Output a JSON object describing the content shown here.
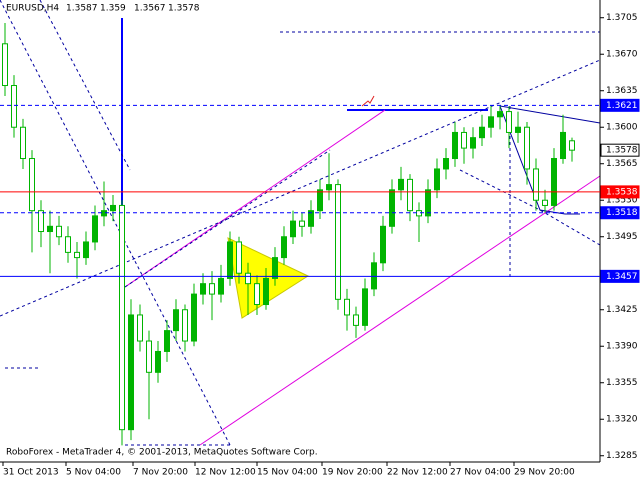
{
  "chart_data": {
    "type": "candlestick",
    "title": "EURUSD,H4",
    "footer": "RoboForex - MetaTrader 4, © 2001-2013, MetaQuotes Software Corp.",
    "x_labels": [
      "31 Oct 2013",
      "5 Nov 04:00",
      "7 Nov 20:00",
      "12 Nov 12:00",
      "15 Nov 04:00",
      "19 Nov 20:00",
      "22 Nov 12:00",
      "27 Nov 04:00",
      "29 Nov 20:00"
    ],
    "up_color": "#00b400",
    "down_color": "#00b400",
    "candles": {
      "open": [
        1.368,
        1.364,
        1.36,
        1.357,
        1.352,
        1.35,
        1.3505,
        1.3495,
        1.348,
        1.3475,
        1.349,
        1.3515,
        1.352,
        1.3525,
        1.331,
        1.342,
        1.3395,
        1.3365,
        1.3385,
        1.3405,
        1.3425,
        1.3395,
        1.344,
        1.345,
        1.344,
        1.3455,
        1.349,
        1.346,
        1.345,
        1.343,
        1.3455,
        1.3475,
        1.3495,
        1.351,
        1.3505,
        1.352,
        1.354,
        1.3545,
        1.3435,
        1.342,
        1.341,
        1.3445,
        1.347,
        1.3505,
        1.354,
        1.355,
        1.352,
        1.3515,
        1.354,
        1.356,
        1.357,
        1.3595,
        1.358,
        1.359,
        1.36,
        1.361,
        1.3615,
        1.3595,
        1.36,
        1.356,
        1.353,
        1.3525,
        1.357,
        1.3587
      ],
      "high": [
        1.37,
        1.365,
        1.3608,
        1.3578,
        1.353,
        1.352,
        1.3515,
        1.3505,
        1.349,
        1.35,
        1.3525,
        1.3548,
        1.3535,
        1.353,
        1.3435,
        1.343,
        1.3405,
        1.3395,
        1.3415,
        1.3435,
        1.343,
        1.345,
        1.346,
        1.3462,
        1.3468,
        1.35,
        1.3495,
        1.347,
        1.3458,
        1.3465,
        1.3485,
        1.3505,
        1.352,
        1.3518,
        1.353,
        1.355,
        1.3575,
        1.355,
        1.3445,
        1.3428,
        1.3455,
        1.348,
        1.3515,
        1.355,
        1.3562,
        1.3555,
        1.3528,
        1.355,
        1.357,
        1.358,
        1.3605,
        1.36,
        1.36,
        1.3612,
        1.3621,
        1.3621,
        1.362,
        1.3615,
        1.3605,
        1.357,
        1.354,
        1.358,
        1.3612,
        1.359
      ],
      "low": [
        1.363,
        1.359,
        1.356,
        1.348,
        1.3485,
        1.346,
        1.3487,
        1.347,
        1.3455,
        1.3468,
        1.3482,
        1.3505,
        1.351,
        1.3295,
        1.33,
        1.3385,
        1.332,
        1.3355,
        1.3375,
        1.3395,
        1.3385,
        1.339,
        1.343,
        1.3415,
        1.3432,
        1.3448,
        1.345,
        1.342,
        1.342,
        1.3425,
        1.3448,
        1.3468,
        1.3488,
        1.3495,
        1.3498,
        1.3512,
        1.353,
        1.3425,
        1.3405,
        1.3398,
        1.3405,
        1.3438,
        1.3462,
        1.3498,
        1.353,
        1.351,
        1.349,
        1.3508,
        1.3532,
        1.355,
        1.3562,
        1.3565,
        1.357,
        1.3582,
        1.359,
        1.3598,
        1.358,
        1.3585,
        1.3545,
        1.352,
        1.3518,
        1.352,
        1.3565,
        1.3567
      ],
      "close": [
        1.364,
        1.36,
        1.357,
        1.352,
        1.35,
        1.3505,
        1.3495,
        1.348,
        1.3475,
        1.349,
        1.3515,
        1.352,
        1.3525,
        1.331,
        1.342,
        1.3395,
        1.3365,
        1.3385,
        1.3405,
        1.3425,
        1.3395,
        1.344,
        1.345,
        1.344,
        1.3455,
        1.349,
        1.346,
        1.345,
        1.343,
        1.3455,
        1.3475,
        1.3495,
        1.351,
        1.3505,
        1.352,
        1.354,
        1.3545,
        1.3435,
        1.342,
        1.341,
        1.3445,
        1.347,
        1.3505,
        1.354,
        1.355,
        1.352,
        1.3515,
        1.354,
        1.356,
        1.357,
        1.3595,
        1.358,
        1.359,
        1.36,
        1.361,
        1.3615,
        1.3595,
        1.36,
        1.356,
        1.353,
        1.3525,
        1.357,
        1.3595,
        1.3578
      ]
    },
    "ylim": [
      1.3279,
      1.3722
    ],
    "yticks": [
      1.3705,
      {
        "value": 1.367,
        "label": "1.3670"
      },
      1.3635,
      {
        "value": 1.36,
        "label": "1.3600"
      },
      1.3565,
      {
        "value": 1.353,
        "label": "1.3530"
      },
      1.3495,
      1.3425,
      {
        "value": 1.339,
        "label": "1.3390"
      },
      1.3355,
      {
        "value": 1.332,
        "label": "1.3320"
      },
      1.3285
    ],
    "levels": [
      {
        "value": 1.3621,
        "color": "#0000ff",
        "line": "dashed"
      },
      {
        "value": 1.3578,
        "color": "#ffffff",
        "line": "none"
      },
      {
        "value": 1.3538,
        "color": "#ff0000",
        "line": "solid"
      },
      {
        "value": 1.3518,
        "color": "#0000ff",
        "line": "dashed"
      },
      {
        "value": 1.3457,
        "color": "#0000ff",
        "line": "solid"
      }
    ]
  }
}
